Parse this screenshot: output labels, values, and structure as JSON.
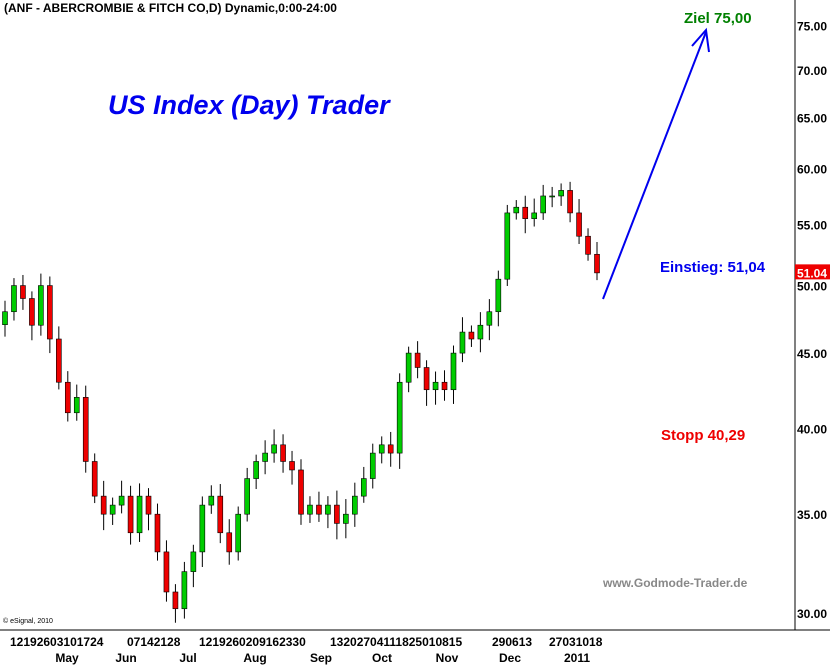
{
  "header": {
    "title": "(ANF - ABERCROMBIE & FITCH CO,D) Dynamic,0:00-24:00",
    "brand": "US Index (Day) Trader",
    "copyright": "© eSignal, 2010",
    "website": "www.Godmode-Trader.de"
  },
  "annotations": {
    "target": "Ziel 75,00",
    "entry": "Einstieg: 51,04",
    "stop": "Stopp 40,29",
    "last_price": "51.04"
  },
  "colors": {
    "up": "#00cc00",
    "down": "#ee0000",
    "arrow": "#0000ee",
    "target": "#008000",
    "entry": "#0000ee",
    "stop": "#ee0000"
  },
  "chart_data": {
    "type": "candlestick",
    "yscale": "log",
    "ylim": [
      29.5,
      78
    ],
    "yticks": [
      "75.00",
      "70.00",
      "65.00",
      "60.00",
      "55.00",
      "50.00",
      "45.00",
      "40.00",
      "35.00",
      "30.00"
    ],
    "xtick_groups": [
      "12192603101724",
      "07142128",
      "1219260209162330",
      "13202704111825010815",
      "290613",
      "27031018"
    ],
    "months": [
      "May",
      "Jun",
      "Jul",
      "Aug",
      "Sep",
      "Oct",
      "Nov",
      "Dec",
      "2011"
    ],
    "closes": [
      48,
      50,
      49,
      47,
      50,
      46,
      43,
      41,
      42,
      38,
      36,
      35,
      35.5,
      36,
      34,
      36,
      35,
      33,
      31,
      30.2,
      32,
      33,
      35.5,
      36,
      34,
      33,
      35,
      37,
      38,
      38.5,
      39,
      38,
      37.5,
      35,
      35.5,
      35,
      35.5,
      34.5,
      35,
      36,
      37,
      38.5,
      39,
      38.5,
      43,
      45,
      44,
      42.5,
      43,
      42.5,
      45,
      46.5,
      46,
      47,
      48,
      50.5,
      56,
      56.5,
      55.5,
      56,
      57.5,
      57.5,
      58,
      56,
      54,
      52.5,
      51
    ],
    "last": 51.04,
    "target": 75.0,
    "entry": 51.04,
    "stop": 40.29
  }
}
